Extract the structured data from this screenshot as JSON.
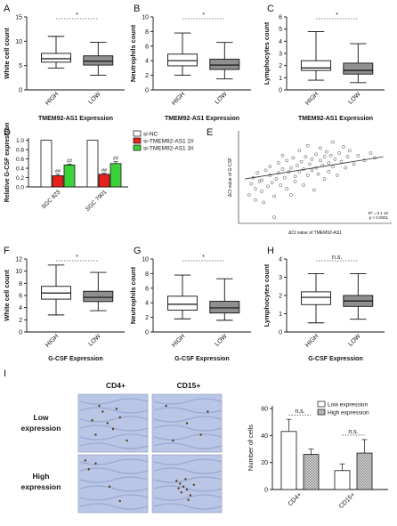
{
  "panel_letters": [
    "A",
    "B",
    "C",
    "D",
    "E",
    "F",
    "G",
    "H",
    "I"
  ],
  "colors": {
    "box_white": "#ffffff",
    "box_grey": "#8f8f8f",
    "sinc": "#ffffff",
    "si2": "#e8211c",
    "si3": "#3ed23a",
    "ihc_bg": "#b9c6e6"
  },
  "chart_data": [
    {
      "id": "A",
      "type": "box",
      "xlabel": "TMEM92-AS1 Expression",
      "ylabel": "White cell count",
      "categories": [
        "HIGH",
        "LOW"
      ],
      "yticks": [
        0,
        5,
        10,
        15
      ],
      "ylim": [
        0,
        15
      ],
      "boxes": [
        {
          "min": 4.5,
          "q1": 5.7,
          "median": 6.4,
          "q3": 7.5,
          "max": 11.0
        },
        {
          "min": 3.0,
          "q1": 5.1,
          "median": 5.9,
          "q3": 7.0,
          "max": 9.8
        }
      ],
      "significance": "*"
    },
    {
      "id": "B",
      "type": "box",
      "xlabel": "TMEM92-AS1 Expression",
      "ylabel": "Neutrophils count",
      "categories": [
        "HIGH",
        "LOW"
      ],
      "yticks": [
        0,
        2,
        4,
        6,
        8,
        10
      ],
      "ylim": [
        0,
        10
      ],
      "boxes": [
        {
          "min": 2.0,
          "q1": 3.3,
          "median": 4.0,
          "q3": 4.9,
          "max": 7.8
        },
        {
          "min": 1.5,
          "q1": 2.8,
          "median": 3.4,
          "q3": 4.2,
          "max": 6.5
        }
      ],
      "significance": "*"
    },
    {
      "id": "C",
      "type": "box",
      "xlabel": "TMEM92-AS1 Expression",
      "ylabel": "Lymphocytes count",
      "categories": [
        "HIGH",
        "LOW"
      ],
      "yticks": [
        0,
        1,
        2,
        3,
        4,
        5,
        6
      ],
      "ylim": [
        0,
        6
      ],
      "boxes": [
        {
          "min": 0.8,
          "q1": 1.6,
          "median": 1.8,
          "q3": 2.4,
          "max": 4.8
        },
        {
          "min": 0.6,
          "q1": 1.3,
          "median": 1.6,
          "q3": 2.2,
          "max": 3.8
        }
      ],
      "significance": "*"
    },
    {
      "id": "D",
      "type": "bar",
      "ylabel": "Relative G-CSF expression",
      "categories": [
        "SGC 823",
        "SGC 7901"
      ],
      "yticks": [
        0.0,
        0.2,
        0.4,
        0.6,
        0.8,
        1.0
      ],
      "ylim": [
        0,
        1.05
      ],
      "legend": [
        "si-NC",
        "si-TMEM92-AS1 2#",
        "si-TMEM92-AS1 3#"
      ],
      "series": [
        {
          "name": "si-NC",
          "values": [
            1.0,
            1.0
          ],
          "errors": [
            0,
            0
          ]
        },
        {
          "name": "si-TMEM92-AS1 2#",
          "values": [
            0.24,
            0.27
          ],
          "errors": [
            0.03,
            0.02
          ],
          "marks": [
            "##",
            "##"
          ]
        },
        {
          "name": "si-TMEM92-AS1 3#",
          "values": [
            0.47,
            0.5
          ],
          "errors": [
            0.02,
            0.04
          ],
          "marks": [
            "##",
            "##"
          ]
        }
      ]
    },
    {
      "id": "E",
      "type": "scatter",
      "xlabel": "ΔCt value of TMEM92-AS1",
      "ylabel": "ΔCt value of G-CSF",
      "annotation_line1": "R² = 0.1 10",
      "annotation_line2": "p < 0.0001",
      "points": [
        [
          3.0,
          3.8
        ],
        [
          3.1,
          4.7
        ],
        [
          3.2,
          5.2
        ],
        [
          3.3,
          4.3
        ],
        [
          3.3,
          3.4
        ],
        [
          3.4,
          5.6
        ],
        [
          3.5,
          4.9
        ],
        [
          3.6,
          5.0
        ],
        [
          3.6,
          4.1
        ],
        [
          3.7,
          3.2
        ],
        [
          3.8,
          5.8
        ],
        [
          3.9,
          4.5
        ],
        [
          4.0,
          5.4
        ],
        [
          4.0,
          6.1
        ],
        [
          4.1,
          4.8
        ],
        [
          4.2,
          3.7
        ],
        [
          4.2,
          2.0
        ],
        [
          4.3,
          5.1
        ],
        [
          4.4,
          6.4
        ],
        [
          4.4,
          5.6
        ],
        [
          4.5,
          4.6
        ],
        [
          4.6,
          5.9
        ],
        [
          4.6,
          7.0
        ],
        [
          4.7,
          5.2
        ],
        [
          4.8,
          4.3
        ],
        [
          4.8,
          6.6
        ],
        [
          4.9,
          5.7
        ],
        [
          5.0,
          6.0
        ],
        [
          5.0,
          3.8
        ],
        [
          5.1,
          6.8
        ],
        [
          5.2,
          5.3
        ],
        [
          5.2,
          4.9
        ],
        [
          5.3,
          6.2
        ],
        [
          5.4,
          7.4
        ],
        [
          5.4,
          5.7
        ],
        [
          5.5,
          6.5
        ],
        [
          5.6,
          4.6
        ],
        [
          5.6,
          5.9
        ],
        [
          5.7,
          6.9
        ],
        [
          5.8,
          5.4
        ],
        [
          5.8,
          7.8
        ],
        [
          5.9,
          6.3
        ],
        [
          6.0,
          5.8
        ],
        [
          6.0,
          6.7
        ],
        [
          6.1,
          4.2
        ],
        [
          6.2,
          7.1
        ],
        [
          6.2,
          6.0
        ],
        [
          6.3,
          5.5
        ],
        [
          6.4,
          6.6
        ],
        [
          6.4,
          7.6
        ],
        [
          6.5,
          6.2
        ],
        [
          6.6,
          5.1
        ],
        [
          6.6,
          6.9
        ],
        [
          6.7,
          7.3
        ],
        [
          6.8,
          6.4
        ],
        [
          6.8,
          5.7
        ],
        [
          6.9,
          7.0
        ],
        [
          7.0,
          6.1
        ],
        [
          7.0,
          8.1
        ],
        [
          7.1,
          6.7
        ],
        [
          7.2,
          5.4
        ],
        [
          7.3,
          7.2
        ],
        [
          7.4,
          6.5
        ],
        [
          7.5,
          7.7
        ],
        [
          7.6,
          6.0
        ],
        [
          7.7,
          6.9
        ],
        [
          7.8,
          7.4
        ],
        [
          8.0,
          6.3
        ],
        [
          8.2,
          7.0
        ],
        [
          8.5,
          6.6
        ],
        [
          8.8,
          7.2
        ],
        [
          9.0,
          6.8
        ]
      ],
      "trend": [
        [
          2.8,
          5.1
        ],
        [
          9.4,
          6.9
        ]
      ],
      "xlim": [
        2.5,
        9.8
      ],
      "ylim": [
        1.5,
        9.0
      ]
    },
    {
      "id": "F",
      "type": "box",
      "xlabel": "G-CSF Expression",
      "ylabel": "White cell count",
      "categories": [
        "HIGH",
        "LOW"
      ],
      "yticks": [
        0,
        2,
        4,
        6,
        8,
        10,
        12
      ],
      "ylim": [
        0,
        12
      ],
      "boxes": [
        {
          "min": 2.8,
          "q1": 5.4,
          "median": 6.4,
          "q3": 7.5,
          "max": 11.0
        },
        {
          "min": 3.5,
          "q1": 5.0,
          "median": 5.7,
          "q3": 6.7,
          "max": 9.8
        }
      ],
      "significance": "*"
    },
    {
      "id": "G",
      "type": "box",
      "xlabel": "G-CSF Expression",
      "ylabel": "Neutrophils count",
      "categories": [
        "HIGH",
        "LOW"
      ],
      "yticks": [
        0,
        2,
        4,
        6,
        8,
        10
      ],
      "ylim": [
        0,
        10
      ],
      "boxes": [
        {
          "min": 1.8,
          "q1": 3.0,
          "median": 3.8,
          "q3": 4.9,
          "max": 7.8
        },
        {
          "min": 1.6,
          "q1": 2.6,
          "median": 3.3,
          "q3": 4.2,
          "max": 7.3
        }
      ],
      "significance": "*"
    },
    {
      "id": "H",
      "type": "box",
      "xlabel": "G-CSF Expression",
      "ylabel": "Lymphocytes count",
      "categories": [
        "HIGH",
        "LOW"
      ],
      "yticks": [
        0,
        1,
        2,
        3,
        4
      ],
      "ylim": [
        0,
        4
      ],
      "boxes": [
        {
          "min": 0.5,
          "q1": 1.5,
          "median": 1.9,
          "q3": 2.2,
          "max": 3.2
        },
        {
          "min": 0.7,
          "q1": 1.4,
          "median": 1.7,
          "q3": 2.0,
          "max": 3.2
        }
      ],
      "significance": "n.s."
    },
    {
      "id": "I",
      "type": "bar",
      "ylabel": "Number of cells",
      "categories": [
        "CD4+",
        "CD15+"
      ],
      "yticks": [
        0,
        20,
        40,
        60
      ],
      "ylim": [
        0,
        62
      ],
      "legend": [
        "Low expression",
        "High expression"
      ],
      "series": [
        {
          "name": "Low expression",
          "values": [
            43,
            14
          ],
          "errors": [
            9,
            5
          ]
        },
        {
          "name": "High expression",
          "values": [
            26,
            27
          ],
          "errors": [
            4,
            10
          ]
        }
      ],
      "significance": [
        "n.s.",
        "n.s."
      ]
    }
  ],
  "ihc": {
    "col_labels": [
      "CD4+",
      "CD15+"
    ],
    "row_labels": [
      [
        "Low",
        "expression"
      ],
      [
        "High",
        "expression"
      ]
    ]
  }
}
